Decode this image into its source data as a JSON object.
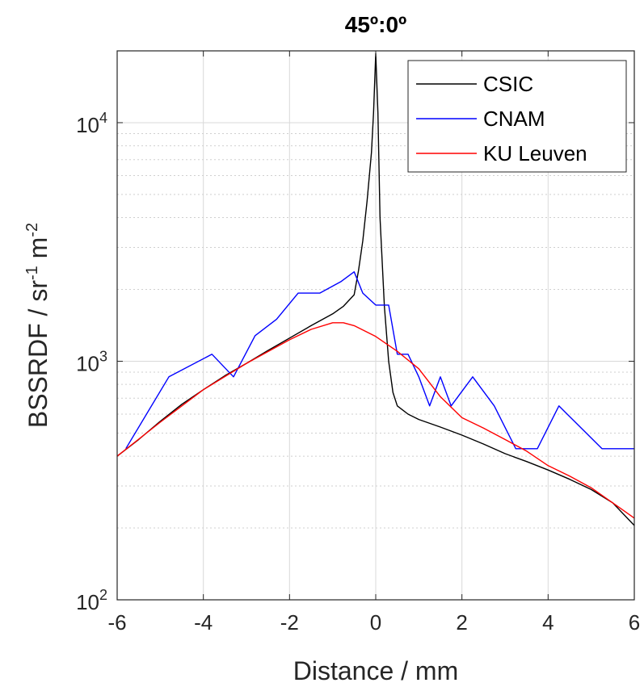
{
  "chart_data": {
    "type": "line",
    "title": "45º:0º",
    "xlabel": "Distance / mm",
    "ylabel_base": "BSSRDF / sr",
    "ylabel_exp1": "-1",
    "ylabel_mid": " m",
    "ylabel_exp2": "-2",
    "xlim": [
      -6,
      6
    ],
    "ylim": [
      100,
      20000
    ],
    "yscale": "log",
    "grid": true,
    "legend_position": "top-right",
    "x_ticks": [
      -6,
      -4,
      -2,
      0,
      2,
      4,
      6
    ],
    "x_tick_labels": [
      "-6",
      "-4",
      "-2",
      "0",
      "2",
      "4",
      "6"
    ],
    "y_ticks": [
      {
        "value": 100,
        "base": "10",
        "exp": "2"
      },
      {
        "value": 1000,
        "base": "10",
        "exp": "3"
      },
      {
        "value": 10000,
        "base": "10",
        "exp": "4"
      }
    ],
    "series": [
      {
        "name": "CSIC",
        "color": "#000000",
        "x": [
          -6,
          -5.5,
          -5,
          -4.5,
          -4,
          -3.5,
          -3,
          -2.5,
          -2,
          -1.5,
          -1,
          -0.75,
          -0.5,
          -0.4,
          -0.3,
          -0.2,
          -0.1,
          -0.05,
          0,
          0.05,
          0.1,
          0.2,
          0.3,
          0.4,
          0.5,
          0.75,
          1,
          1.5,
          2,
          2.5,
          3,
          3.5,
          4,
          4.5,
          5,
          5.5,
          6
        ],
        "y": [
          400,
          470,
          560,
          660,
          760,
          870,
          980,
          1110,
          1250,
          1410,
          1580,
          1700,
          1900,
          2400,
          3200,
          4700,
          7500,
          11000,
          19500,
          11000,
          4000,
          1700,
          1000,
          740,
          650,
          600,
          570,
          530,
          490,
          450,
          410,
          380,
          350,
          320,
          290,
          255,
          205
        ]
      },
      {
        "name": "CNAM",
        "color": "#0000ff",
        "x": [
          -5.8,
          -4.8,
          -3.8,
          -3.3,
          -2.8,
          -2.3,
          -1.8,
          -1.3,
          -0.8,
          -0.5,
          -0.3,
          0,
          0.3,
          0.5,
          0.75,
          1,
          1.25,
          1.5,
          1.75,
          2.25,
          2.75,
          3.25,
          3.75,
          4.25,
          5.25,
          6
        ],
        "y": [
          430,
          860,
          1070,
          860,
          1280,
          1500,
          1930,
          1930,
          2160,
          2370,
          1930,
          1720,
          1720,
          1070,
          1070,
          860,
          650,
          860,
          650,
          860,
          650,
          430,
          430,
          650,
          430,
          430
        ]
      },
      {
        "name": "KU Leuven",
        "color": "#ff0000",
        "x": [
          -6,
          -5,
          -4,
          -3,
          -2,
          -1.5,
          -1,
          -0.75,
          -0.5,
          0,
          0.5,
          1,
          1.5,
          2,
          2.5,
          3,
          3.5,
          4,
          4.5,
          5,
          5.5,
          6
        ],
        "y": [
          400,
          555,
          760,
          980,
          1230,
          1360,
          1450,
          1450,
          1410,
          1270,
          1100,
          930,
          710,
          580,
          525,
          470,
          420,
          365,
          330,
          295,
          255,
          220
        ]
      }
    ]
  }
}
